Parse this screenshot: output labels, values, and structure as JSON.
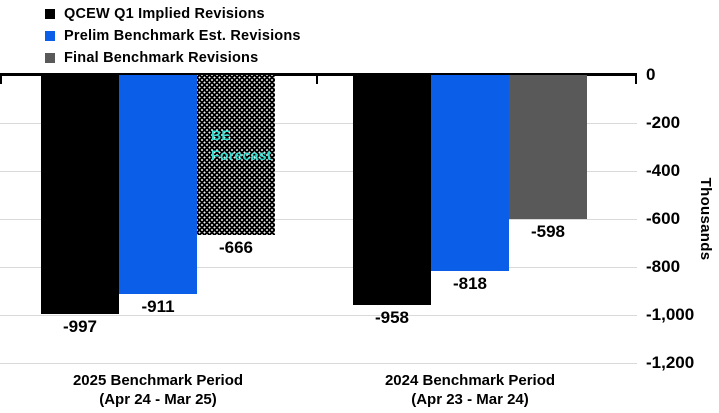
{
  "legend": {
    "items": [
      {
        "key": "qcew",
        "label": "QCEW Q1 Implied Revisions",
        "color": "#000000"
      },
      {
        "key": "prelim",
        "label": "Prelim Benchmark Est. Revisions",
        "color": "#0a5ee8"
      },
      {
        "key": "final",
        "label": "Final Benchmark Revisions",
        "color": "#595959"
      }
    ]
  },
  "chart_data": {
    "type": "bar",
    "orientation": "vertical-negative",
    "categories": [
      {
        "key": "2025",
        "line1": "2025 Benchmark Period",
        "line2": "(Apr 24 - Mar 25)"
      },
      {
        "key": "2024",
        "line1": "2024 Benchmark Period",
        "line2": "(Apr 23 - Mar 24)"
      }
    ],
    "series": [
      {
        "name": "QCEW Q1 Implied Revisions",
        "key": "qcew",
        "color": "#000000",
        "patterns": [
          "solid",
          "solid"
        ],
        "values": [
          -997,
          -958
        ],
        "labels": [
          "-997",
          "-958"
        ]
      },
      {
        "name": "Prelim Benchmark Est. Revisions",
        "key": "prelim",
        "color": "#0a5ee8",
        "patterns": [
          "solid",
          "solid"
        ],
        "values": [
          -911,
          -818
        ],
        "labels": [
          "-911",
          "-818"
        ]
      },
      {
        "name": "Final Benchmark Revisions",
        "key": "final",
        "color": "#595959",
        "patterns": [
          "dotted-black",
          "solid"
        ],
        "values": [
          -666,
          -598
        ],
        "labels": [
          "-666",
          "-598"
        ]
      }
    ],
    "annotation": {
      "lines": [
        "BE",
        "Forecast"
      ],
      "color": "#35dfd0",
      "target": {
        "series": 2,
        "category": 0
      }
    },
    "y_axis": {
      "side": "right",
      "label": "Thousands",
      "ylim": [
        -1200,
        0
      ],
      "ticks": [
        0,
        -200,
        -400,
        -600,
        -800,
        -1000,
        -1200
      ],
      "tick_labels": [
        "0",
        "-200",
        "-400",
        "-600",
        "-800",
        "-1,000",
        "-1,200"
      ]
    },
    "grid": true,
    "legend_position": "top-left",
    "style_colors": {
      "gridline": "#d9d9d9",
      "axis": "#000000",
      "dot_pattern_bg": "#000000",
      "dot_pattern_dot": "#ffffff"
    }
  }
}
